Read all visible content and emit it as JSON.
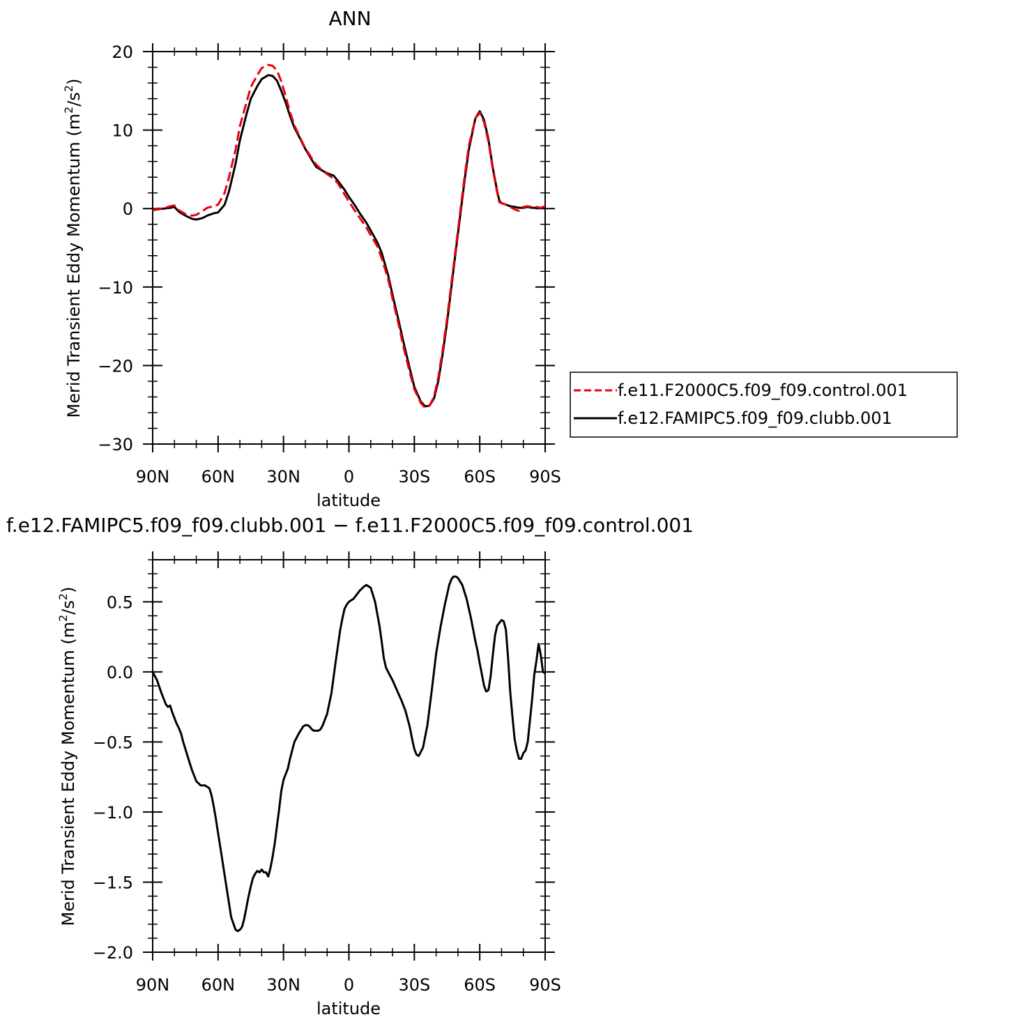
{
  "chart_data": [
    {
      "type": "line",
      "title": "ANN",
      "xlabel": "latitude",
      "ylabel": "Merid Transient Eddy Momentum (m",
      "ylabel_unit_sup1": "2",
      "ylabel_unit_mid": "/s",
      "ylabel_unit_sup2": "2",
      "ylabel_unit_end": ")",
      "xlim": [
        -90,
        90
      ],
      "ylim": [
        -30,
        20
      ],
      "x_ticks": [
        {
          "value": -90,
          "label": "90N"
        },
        {
          "value": -60,
          "label": "60N"
        },
        {
          "value": -30,
          "label": "30N"
        },
        {
          "value": 0,
          "label": "0"
        },
        {
          "value": 30,
          "label": "30S"
        },
        {
          "value": 60,
          "label": "60S"
        },
        {
          "value": 90,
          "label": "90S"
        }
      ],
      "y_ticks": [
        {
          "value": 20,
          "label": "20"
        },
        {
          "value": 10,
          "label": "10"
        },
        {
          "value": 0,
          "label": "0"
        },
        {
          "value": -10,
          "label": "−10"
        },
        {
          "value": -20,
          "label": "−20"
        },
        {
          "value": -30,
          "label": "−30"
        }
      ],
      "legend_position": "right",
      "series": [
        {
          "name": "f.e11.F2000C5.f09_f09.control.001",
          "color": "#e8000b",
          "dashed": true,
          "x": [
            -90,
            -88,
            -85,
            -82,
            -80,
            -78,
            -75,
            -72,
            -70,
            -67,
            -65,
            -62,
            -60,
            -57,
            -55,
            -52,
            -50,
            -47,
            -45,
            -42,
            -40,
            -37,
            -35,
            -33,
            -31,
            -29,
            -27,
            -25,
            -22,
            -20,
            -17,
            -15,
            -12,
            -10,
            -7,
            -5,
            -2,
            0,
            3,
            5,
            8,
            10,
            13,
            15,
            18,
            20,
            23,
            25,
            28,
            30,
            33,
            35,
            37,
            39,
            41,
            43,
            45,
            47,
            49,
            51,
            53,
            55,
            58,
            60,
            62,
            64,
            66,
            68,
            69,
            70,
            72,
            74,
            76,
            78,
            80,
            82,
            84,
            86,
            88,
            90
          ],
          "y": [
            -0.2,
            0.0,
            0.0,
            0.3,
            0.4,
            -0.2,
            -0.7,
            -0.9,
            -0.8,
            -0.3,
            0.1,
            0.3,
            0.5,
            2.0,
            4.0,
            7.5,
            10.5,
            13.5,
            15.5,
            17.0,
            17.9,
            18.3,
            18.2,
            17.6,
            16.2,
            14.3,
            12.3,
            10.6,
            8.8,
            7.7,
            6.4,
            5.6,
            4.8,
            4.4,
            3.8,
            3.2,
            1.8,
            0.9,
            -0.4,
            -1.2,
            -2.4,
            -3.4,
            -4.8,
            -6.3,
            -9.0,
            -11.5,
            -15.0,
            -17.6,
            -21.0,
            -23.0,
            -24.8,
            -25.4,
            -25.1,
            -24.0,
            -21.5,
            -18.0,
            -14.0,
            -9.5,
            -5.0,
            -0.5,
            4.0,
            8.0,
            11.5,
            12.2,
            11.0,
            8.5,
            5.0,
            2.0,
            0.8,
            0.7,
            0.5,
            0.2,
            -0.1,
            -0.3,
            0.2,
            0.3,
            0.2,
            0.2,
            0.1,
            0.3
          ]
        },
        {
          "name": "f.e12.FAMIPC5.f09_f09.clubb.001",
          "color": "#000000",
          "dashed": false,
          "x": [
            -90,
            -88,
            -85,
            -82,
            -80,
            -78,
            -75,
            -72,
            -70,
            -67,
            -65,
            -62,
            -60,
            -57,
            -55,
            -52,
            -50,
            -47,
            -45,
            -42,
            -40,
            -37,
            -35,
            -33,
            -31,
            -29,
            -27,
            -25,
            -22,
            -20,
            -17,
            -15,
            -12,
            -10,
            -7,
            -5,
            -2,
            0,
            3,
            5,
            8,
            10,
            13,
            15,
            18,
            20,
            23,
            25,
            28,
            30,
            33,
            35,
            37,
            39,
            41,
            43,
            45,
            47,
            49,
            51,
            53,
            55,
            58,
            60,
            62,
            64,
            66,
            68,
            69,
            70,
            72,
            74,
            76,
            78,
            80,
            82,
            84,
            86,
            88,
            90
          ],
          "y": [
            -0.2,
            -0.1,
            0.0,
            0.1,
            0.2,
            -0.4,
            -0.9,
            -1.3,
            -1.4,
            -1.2,
            -0.9,
            -0.6,
            -0.5,
            0.5,
            2.2,
            5.7,
            8.7,
            12.0,
            14.0,
            15.6,
            16.5,
            17.0,
            16.9,
            16.3,
            15.0,
            13.5,
            11.8,
            10.3,
            8.7,
            7.6,
            6.2,
            5.3,
            4.8,
            4.5,
            4.2,
            3.5,
            2.4,
            1.5,
            0.3,
            -0.6,
            -1.8,
            -2.8,
            -4.3,
            -5.6,
            -8.5,
            -11.0,
            -14.5,
            -17.0,
            -20.5,
            -22.7,
            -24.6,
            -25.2,
            -25.1,
            -24.2,
            -22.0,
            -18.5,
            -14.5,
            -10.0,
            -5.4,
            -1.0,
            3.5,
            7.5,
            11.5,
            12.4,
            11.3,
            8.8,
            5.2,
            2.2,
            1.0,
            0.7,
            0.5,
            0.3,
            0.2,
            0.1,
            0.1,
            0.2,
            0.1,
            0.1,
            0.1,
            0.2
          ]
        }
      ]
    },
    {
      "type": "line",
      "title": "f.e12.FAMIPC5.f09_f09.clubb.001 − f.e11.F2000C5.f09_f09.control.001",
      "xlabel": "latitude",
      "ylabel": "Merid Transient Eddy Momentum (m",
      "ylabel_unit_sup1": "2",
      "ylabel_unit_mid": "/s",
      "ylabel_unit_sup2": "2",
      "ylabel_unit_end": ")",
      "xlim": [
        -90,
        90
      ],
      "ylim": [
        -2.0,
        0.8
      ],
      "x_ticks": [
        {
          "value": -90,
          "label": "90N"
        },
        {
          "value": -60,
          "label": "60N"
        },
        {
          "value": -30,
          "label": "30N"
        },
        {
          "value": 0,
          "label": "0"
        },
        {
          "value": 30,
          "label": "30S"
        },
        {
          "value": 60,
          "label": "60S"
        },
        {
          "value": 90,
          "label": "90S"
        }
      ],
      "y_ticks": [
        {
          "value": 0.5,
          "label": "0.5"
        },
        {
          "value": 0.0,
          "label": "0.0"
        },
        {
          "value": -0.5,
          "label": "−0.5"
        },
        {
          "value": -1.0,
          "label": "−1.0"
        },
        {
          "value": -1.5,
          "label": "−1.5"
        },
        {
          "value": -2.0,
          "label": "−2.0"
        }
      ],
      "series": [
        {
          "color": "#000000",
          "dashed": false,
          "x": [
            -90,
            -88,
            -86,
            -84,
            -83,
            -82,
            -81,
            -79,
            -78,
            -77,
            -76,
            -75,
            -74,
            -72,
            -70,
            -68,
            -66,
            -64,
            -63,
            -62,
            -61,
            -60,
            -59,
            -58,
            -56,
            -54,
            -52,
            -51,
            -50,
            -49,
            -48,
            -47,
            -46,
            -45,
            -44,
            -43,
            -42,
            -41,
            -40,
            -39,
            -38,
            -37,
            -36,
            -35,
            -34,
            -33,
            -32,
            -31,
            -30,
            -29,
            -28,
            -27,
            -25,
            -23,
            -21,
            -20,
            -19,
            -18,
            -17,
            -16,
            -15,
            -14,
            -13,
            -12,
            -10,
            -8,
            -6,
            -4,
            -3,
            -2,
            -1,
            0,
            1,
            2,
            3,
            5,
            7,
            8,
            10,
            12,
            14,
            15,
            16,
            17,
            18,
            20,
            22,
            24,
            26,
            28,
            29,
            30,
            31,
            32,
            34,
            36,
            38,
            40,
            42,
            44,
            46,
            47,
            48,
            49,
            50,
            52,
            54,
            56,
            58,
            59,
            60,
            61,
            62,
            63,
            64,
            65,
            66,
            67,
            68,
            69,
            70,
            71,
            72,
            73,
            74,
            75,
            76,
            77,
            78,
            79,
            80,
            81,
            82,
            83,
            84,
            85,
            86,
            87,
            88,
            89,
            90
          ],
          "y": [
            0.0,
            -0.06,
            -0.15,
            -0.23,
            -0.25,
            -0.24,
            -0.29,
            -0.37,
            -0.4,
            -0.44,
            -0.5,
            -0.55,
            -0.6,
            -0.7,
            -0.78,
            -0.81,
            -0.81,
            -0.83,
            -0.88,
            -0.96,
            -1.05,
            -1.15,
            -1.25,
            -1.35,
            -1.55,
            -1.75,
            -1.84,
            -1.85,
            -1.84,
            -1.82,
            -1.76,
            -1.68,
            -1.6,
            -1.53,
            -1.47,
            -1.44,
            -1.42,
            -1.43,
            -1.41,
            -1.43,
            -1.43,
            -1.46,
            -1.4,
            -1.32,
            -1.22,
            -1.1,
            -0.98,
            -0.85,
            -0.77,
            -0.73,
            -0.69,
            -0.62,
            -0.5,
            -0.44,
            -0.39,
            -0.38,
            -0.38,
            -0.39,
            -0.41,
            -0.42,
            -0.42,
            -0.42,
            -0.41,
            -0.38,
            -0.3,
            -0.15,
            0.08,
            0.3,
            0.38,
            0.45,
            0.48,
            0.5,
            0.51,
            0.52,
            0.54,
            0.58,
            0.61,
            0.62,
            0.6,
            0.5,
            0.33,
            0.22,
            0.1,
            0.03,
            0.0,
            -0.06,
            -0.13,
            -0.2,
            -0.28,
            -0.4,
            -0.48,
            -0.55,
            -0.59,
            -0.6,
            -0.54,
            -0.38,
            -0.13,
            0.13,
            0.32,
            0.48,
            0.62,
            0.66,
            0.68,
            0.68,
            0.67,
            0.62,
            0.52,
            0.38,
            0.22,
            0.15,
            0.06,
            -0.02,
            -0.1,
            -0.14,
            -0.13,
            -0.03,
            0.12,
            0.26,
            0.33,
            0.35,
            0.37,
            0.36,
            0.3,
            0.1,
            -0.15,
            -0.32,
            -0.48,
            -0.56,
            -0.62,
            -0.62,
            -0.58,
            -0.56,
            -0.5,
            -0.35,
            -0.2,
            -0.02,
            0.08,
            0.2,
            0.12,
            0.0,
            -0.01
          ]
        }
      ]
    }
  ]
}
